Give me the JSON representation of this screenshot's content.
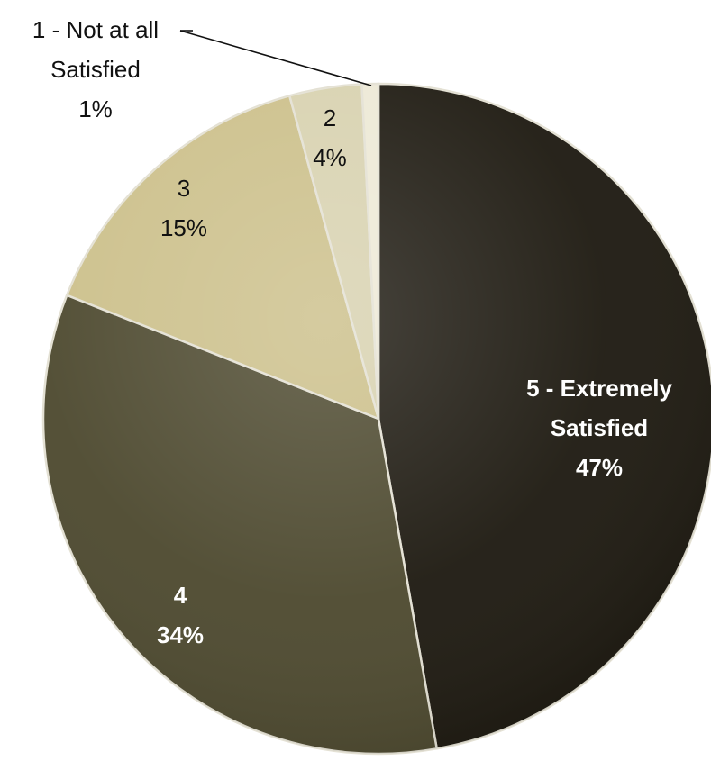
{
  "chart_data": {
    "type": "pie",
    "title": "",
    "slices": [
      {
        "category": "5 - Extremely Satisfied",
        "lines": [
          "5 - Extremely",
          "Satisfied"
        ],
        "percent_label": "47%",
        "value": 47.5,
        "color": "#1f1b12",
        "label_color": "#ffffff"
      },
      {
        "category": "4",
        "lines": [
          "4"
        ],
        "percent_label": "34%",
        "value": 34,
        "color": "#4e4a30",
        "label_color": "#ffffff"
      },
      {
        "category": "3",
        "lines": [
          "3"
        ],
        "percent_label": "15%",
        "value": 14.8,
        "color": "#ccc08b",
        "label_color": "#111111"
      },
      {
        "category": "2",
        "lines": [
          "2"
        ],
        "percent_label": "4%",
        "value": 3.5,
        "color": "#d8d2b0",
        "label_color": "#111111"
      },
      {
        "category": "1 - Not at all Satisfied",
        "lines": [
          "1 - Not at all",
          "Satisfied"
        ],
        "percent_label": "1%",
        "value": 0.8,
        "color": "#ede9d6",
        "label_color": "#111111"
      }
    ]
  }
}
